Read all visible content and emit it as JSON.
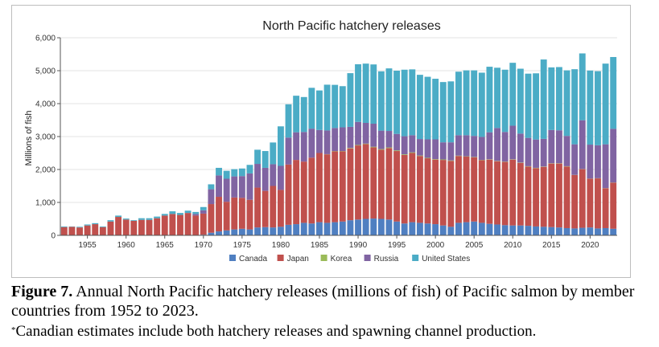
{
  "chart_data": {
    "type": "bar",
    "stacked": true,
    "title": "North Pacific hatchery releases",
    "xlabel": "",
    "ylabel": "Millions of fish",
    "ylim": [
      0,
      6000
    ],
    "yticks": [
      "0",
      "1,000",
      "2,000",
      "3,000",
      "4,000",
      "5,000",
      "6,000"
    ],
    "ytick_values": [
      0,
      1000,
      2000,
      3000,
      4000,
      5000,
      6000
    ],
    "xticks": [
      "1955",
      "1960",
      "1965",
      "1970",
      "1975",
      "1980",
      "1985",
      "1990",
      "1995",
      "2000",
      "2005",
      "2010",
      "2015",
      "2020"
    ],
    "xtick_values": [
      1955,
      1960,
      1965,
      1970,
      1975,
      1980,
      1985,
      1990,
      1995,
      2000,
      2005,
      2010,
      2015,
      2020
    ],
    "grid": true,
    "legend_position": "bottom",
    "x": [
      1952,
      1953,
      1954,
      1955,
      1956,
      1957,
      1958,
      1959,
      1960,
      1961,
      1962,
      1963,
      1964,
      1965,
      1966,
      1967,
      1968,
      1969,
      1970,
      1971,
      1972,
      1973,
      1974,
      1975,
      1976,
      1977,
      1978,
      1979,
      1980,
      1981,
      1982,
      1983,
      1984,
      1985,
      1986,
      1987,
      1988,
      1989,
      1990,
      1991,
      1992,
      1993,
      1994,
      1995,
      1996,
      1997,
      1998,
      1999,
      2000,
      2001,
      2002,
      2003,
      2004,
      2005,
      2006,
      2007,
      2008,
      2009,
      2010,
      2011,
      2012,
      2013,
      2014,
      2015,
      2016,
      2017,
      2018,
      2019,
      2020,
      2021,
      2022,
      2023
    ],
    "series": [
      {
        "name": "Canada",
        "color": "#4f7fc1",
        "values": [
          0,
          0,
          0,
          0,
          0,
          0,
          0,
          0,
          0,
          0,
          0,
          0,
          0,
          0,
          0,
          0,
          0,
          0,
          20,
          80,
          120,
          150,
          180,
          200,
          180,
          240,
          250,
          240,
          260,
          320,
          340,
          380,
          360,
          400,
          380,
          400,
          420,
          460,
          480,
          500,
          510,
          500,
          480,
          420,
          360,
          400,
          380,
          360,
          340,
          300,
          260,
          380,
          400,
          420,
          380,
          350,
          330,
          310,
          300,
          300,
          290,
          270,
          260,
          250,
          240,
          220,
          210,
          230,
          240,
          210,
          220,
          200
        ]
      },
      {
        "name": "Japan",
        "color": "#c0504d",
        "values": [
          250,
          260,
          240,
          300,
          340,
          250,
          420,
          560,
          480,
          440,
          470,
          470,
          520,
          600,
          650,
          620,
          680,
          600,
          640,
          870,
          1050,
          870,
          970,
          940,
          900,
          1210,
          1100,
          1260,
          1120,
          1830,
          1950,
          1860,
          2000,
          2100,
          2080,
          2150,
          2130,
          2180,
          2250,
          2270,
          2160,
          2100,
          2170,
          2140,
          2080,
          2100,
          2030,
          1980,
          1960,
          1990,
          2000,
          2030,
          1990,
          1950,
          1900,
          1950,
          1920,
          1920,
          2000,
          1900,
          1800,
          1770,
          1820,
          1930,
          1940,
          1870,
          1620,
          1780,
          1480,
          1520,
          1210,
          1400
        ]
      },
      {
        "name": "Korea",
        "color": "#9bbb59",
        "values": [
          0,
          0,
          0,
          0,
          0,
          0,
          0,
          0,
          0,
          0,
          0,
          0,
          0,
          0,
          0,
          0,
          0,
          0,
          0,
          0,
          0,
          0,
          0,
          0,
          0,
          0,
          0,
          0,
          0,
          0,
          0,
          0,
          0,
          0,
          5,
          10,
          10,
          15,
          15,
          15,
          20,
          20,
          20,
          20,
          20,
          20,
          15,
          15,
          15,
          15,
          15,
          10,
          10,
          10,
          10,
          10,
          10,
          10,
          10,
          10,
          10,
          10,
          10,
          10,
          10,
          10,
          5,
          5,
          5,
          5,
          5,
          5
        ]
      },
      {
        "name": "Russia",
        "color": "#8064a2",
        "values": [
          0,
          0,
          0,
          0,
          0,
          0,
          0,
          0,
          0,
          0,
          0,
          0,
          0,
          0,
          0,
          0,
          0,
          50,
          100,
          450,
          650,
          700,
          640,
          660,
          800,
          720,
          700,
          660,
          730,
          820,
          840,
          900,
          880,
          700,
          720,
          700,
          720,
          640,
          700,
          630,
          700,
          560,
          500,
          500,
          550,
          520,
          500,
          560,
          600,
          520,
          550,
          620,
          640,
          640,
          700,
          820,
          1000,
          900,
          1020,
          880,
          860,
          860,
          840,
          1010,
          1000,
          920,
          930,
          1480,
          1030,
          1000,
          1330,
          1630
        ]
      },
      {
        "name": "United States",
        "color": "#4bacc6",
        "values": [
          20,
          10,
          20,
          30,
          30,
          20,
          40,
          40,
          30,
          20,
          50,
          50,
          50,
          50,
          80,
          60,
          70,
          60,
          100,
          150,
          230,
          240,
          220,
          230,
          260,
          430,
          510,
          660,
          1200,
          1010,
          1110,
          1060,
          1240,
          1200,
          1390,
          1310,
          1250,
          1630,
          1750,
          1800,
          1800,
          1800,
          1900,
          1920,
          2020,
          2000,
          1950,
          1900,
          1840,
          1830,
          1850,
          1930,
          1970,
          1990,
          1950,
          1990,
          1830,
          1890,
          1910,
          1970,
          1950,
          2010,
          2410,
          1900,
          1920,
          1990,
          2280,
          2030,
          2250,
          2250,
          2450,
          2180
        ]
      }
    ]
  },
  "caption": {
    "figure_label": "Figure 7.",
    "line1_rest": " Annual North Pacific hatchery releases (millions of fish) of Pacific salmon by member",
    "line2": "countries from 1952 to 2023.",
    "footnote_marker": "*",
    "footnote_text": "Canadian estimates include both hatchery releases and spawning channel production."
  }
}
